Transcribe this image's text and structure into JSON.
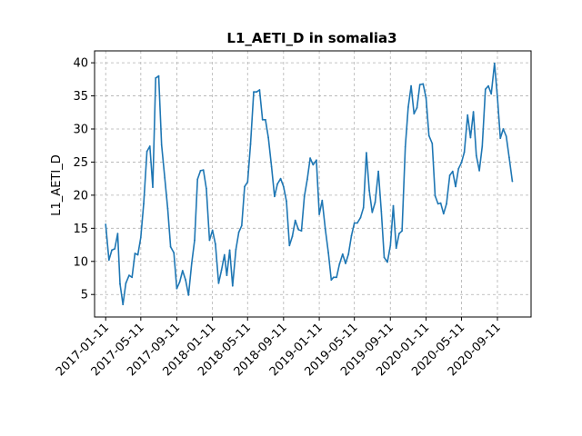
{
  "chart_data": {
    "type": "line",
    "title": "L1_AETI_D in somalia3",
    "xlabel": "",
    "ylabel": "L1_AETI_D",
    "x_tick_labels": [
      "2017-01-11",
      "2017-05-11",
      "2017-09-11",
      "2018-01-11",
      "2018-05-11",
      "2018-09-11",
      "2019-01-11",
      "2019-05-11",
      "2019-09-11",
      "2020-01-11",
      "2020-05-11",
      "2020-09-11"
    ],
    "x_tick_dates": [
      "2017-01-11",
      "2017-05-11",
      "2017-09-11",
      "2018-01-11",
      "2018-05-11",
      "2018-09-11",
      "2019-01-11",
      "2019-05-11",
      "2019-09-11",
      "2020-01-11",
      "2020-05-11",
      "2020-09-11"
    ],
    "y_ticks": [
      5,
      10,
      15,
      20,
      25,
      30,
      35,
      40
    ],
    "xlim": [
      "2016-12-04",
      "2021-01-04"
    ],
    "ylim": [
      1.6,
      41.8
    ],
    "grid": true,
    "line_style": "dashed-grid",
    "colors": {
      "line": "#1f77b4",
      "grid": "#b0b0b0"
    },
    "series": [
      {
        "values": [
          [
            "2017-01-11",
            15.6
          ],
          [
            "2017-01-22",
            10.2
          ],
          [
            "2017-02-01",
            11.7
          ],
          [
            "2017-02-11",
            11.9
          ],
          [
            "2017-02-21",
            14.2
          ],
          [
            "2017-03-01",
            6.6
          ],
          [
            "2017-03-11",
            3.5
          ],
          [
            "2017-03-21",
            6.7
          ],
          [
            "2017-04-01",
            7.9
          ],
          [
            "2017-04-11",
            7.6
          ],
          [
            "2017-04-21",
            11.2
          ],
          [
            "2017-05-01",
            11.0
          ],
          [
            "2017-05-11",
            13.6
          ],
          [
            "2017-05-21",
            18.7
          ],
          [
            "2017-06-01",
            26.6
          ],
          [
            "2017-06-11",
            27.4
          ],
          [
            "2017-06-21",
            21.2
          ],
          [
            "2017-07-01",
            37.7
          ],
          [
            "2017-07-11",
            38.0
          ],
          [
            "2017-07-21",
            27.6
          ],
          [
            "2017-08-01",
            22.6
          ],
          [
            "2017-08-11",
            18.0
          ],
          [
            "2017-08-21",
            12.2
          ],
          [
            "2017-09-01",
            11.3
          ],
          [
            "2017-09-11",
            5.9
          ],
          [
            "2017-09-21",
            6.9
          ],
          [
            "2017-10-01",
            8.6
          ],
          [
            "2017-10-11",
            7.2
          ],
          [
            "2017-10-21",
            4.9
          ],
          [
            "2017-11-01",
            9.7
          ],
          [
            "2017-11-11",
            13.2
          ],
          [
            "2017-11-21",
            22.4
          ],
          [
            "2017-12-01",
            23.7
          ],
          [
            "2017-12-11",
            23.8
          ],
          [
            "2017-12-21",
            21.0
          ],
          [
            "2018-01-01",
            13.2
          ],
          [
            "2018-01-11",
            14.7
          ],
          [
            "2018-01-21",
            12.6
          ],
          [
            "2018-02-01",
            6.7
          ],
          [
            "2018-02-11",
            8.7
          ],
          [
            "2018-02-21",
            11.0
          ],
          [
            "2018-03-01",
            7.9
          ],
          [
            "2018-03-11",
            11.7
          ],
          [
            "2018-03-21",
            6.3
          ],
          [
            "2018-04-01",
            11.8
          ],
          [
            "2018-04-11",
            14.4
          ],
          [
            "2018-04-21",
            15.4
          ],
          [
            "2018-05-01",
            21.3
          ],
          [
            "2018-05-11",
            22.0
          ],
          [
            "2018-05-21",
            27.7
          ],
          [
            "2018-06-01",
            35.6
          ],
          [
            "2018-06-11",
            35.6
          ],
          [
            "2018-06-21",
            35.9
          ],
          [
            "2018-07-01",
            31.4
          ],
          [
            "2018-07-11",
            31.4
          ],
          [
            "2018-07-21",
            28.7
          ],
          [
            "2018-08-01",
            24.3
          ],
          [
            "2018-08-11",
            19.8
          ],
          [
            "2018-08-21",
            21.7
          ],
          [
            "2018-09-01",
            22.5
          ],
          [
            "2018-09-11",
            21.3
          ],
          [
            "2018-09-21",
            19.1
          ],
          [
            "2018-10-01",
            12.4
          ],
          [
            "2018-10-11",
            13.8
          ],
          [
            "2018-10-21",
            16.2
          ],
          [
            "2018-11-01",
            14.8
          ],
          [
            "2018-11-11",
            14.6
          ],
          [
            "2018-11-21",
            19.8
          ],
          [
            "2018-12-01",
            22.4
          ],
          [
            "2018-12-11",
            25.6
          ],
          [
            "2018-12-21",
            24.6
          ],
          [
            "2019-01-01",
            25.3
          ],
          [
            "2019-01-11",
            17.1
          ],
          [
            "2019-01-21",
            19.2
          ],
          [
            "2019-02-01",
            14.8
          ],
          [
            "2019-02-11",
            11.3
          ],
          [
            "2019-02-21",
            7.2
          ],
          [
            "2019-03-01",
            7.6
          ],
          [
            "2019-03-11",
            7.6
          ],
          [
            "2019-03-21",
            9.6
          ],
          [
            "2019-04-01",
            11.1
          ],
          [
            "2019-04-11",
            9.7
          ],
          [
            "2019-04-21",
            11.1
          ],
          [
            "2019-05-01",
            13.9
          ],
          [
            "2019-05-11",
            15.8
          ],
          [
            "2019-05-21",
            15.8
          ],
          [
            "2019-06-01",
            16.6
          ],
          [
            "2019-06-11",
            18.1
          ],
          [
            "2019-06-21",
            26.4
          ],
          [
            "2019-07-01",
            20.7
          ],
          [
            "2019-07-11",
            17.4
          ],
          [
            "2019-07-21",
            18.9
          ],
          [
            "2019-08-01",
            23.6
          ],
          [
            "2019-08-11",
            17.6
          ],
          [
            "2019-08-21",
            10.6
          ],
          [
            "2019-09-01",
            9.9
          ],
          [
            "2019-09-11",
            12.4
          ],
          [
            "2019-09-21",
            18.4
          ],
          [
            "2019-10-01",
            12.0
          ],
          [
            "2019-10-11",
            14.2
          ],
          [
            "2019-10-21",
            14.6
          ],
          [
            "2019-11-01",
            27.3
          ],
          [
            "2019-11-11",
            33.3
          ],
          [
            "2019-11-21",
            36.5
          ],
          [
            "2019-12-01",
            32.3
          ],
          [
            "2019-12-11",
            33.2
          ],
          [
            "2019-12-21",
            36.7
          ],
          [
            "2020-01-01",
            36.8
          ],
          [
            "2020-01-11",
            34.7
          ],
          [
            "2020-01-21",
            29.0
          ],
          [
            "2020-02-01",
            27.8
          ],
          [
            "2020-02-11",
            19.9
          ],
          [
            "2020-02-21",
            18.7
          ],
          [
            "2020-03-01",
            18.8
          ],
          [
            "2020-03-11",
            17.2
          ],
          [
            "2020-03-21",
            18.7
          ],
          [
            "2020-04-01",
            23.0
          ],
          [
            "2020-04-11",
            23.6
          ],
          [
            "2020-04-21",
            21.3
          ],
          [
            "2020-05-01",
            24.0
          ],
          [
            "2020-05-11",
            24.9
          ],
          [
            "2020-05-21",
            26.5
          ],
          [
            "2020-06-01",
            32.1
          ],
          [
            "2020-06-11",
            28.7
          ],
          [
            "2020-06-21",
            32.6
          ],
          [
            "2020-07-01",
            26.0
          ],
          [
            "2020-07-11",
            23.7
          ],
          [
            "2020-07-21",
            27.4
          ],
          [
            "2020-08-01",
            36.0
          ],
          [
            "2020-08-11",
            36.5
          ],
          [
            "2020-08-21",
            35.3
          ],
          [
            "2020-09-01",
            39.9
          ],
          [
            "2020-09-11",
            34.8
          ],
          [
            "2020-09-21",
            28.6
          ],
          [
            "2020-10-01",
            30.0
          ],
          [
            "2020-10-11",
            28.9
          ],
          [
            "2020-10-21",
            25.7
          ],
          [
            "2020-11-01",
            22.1
          ]
        ]
      }
    ]
  }
}
